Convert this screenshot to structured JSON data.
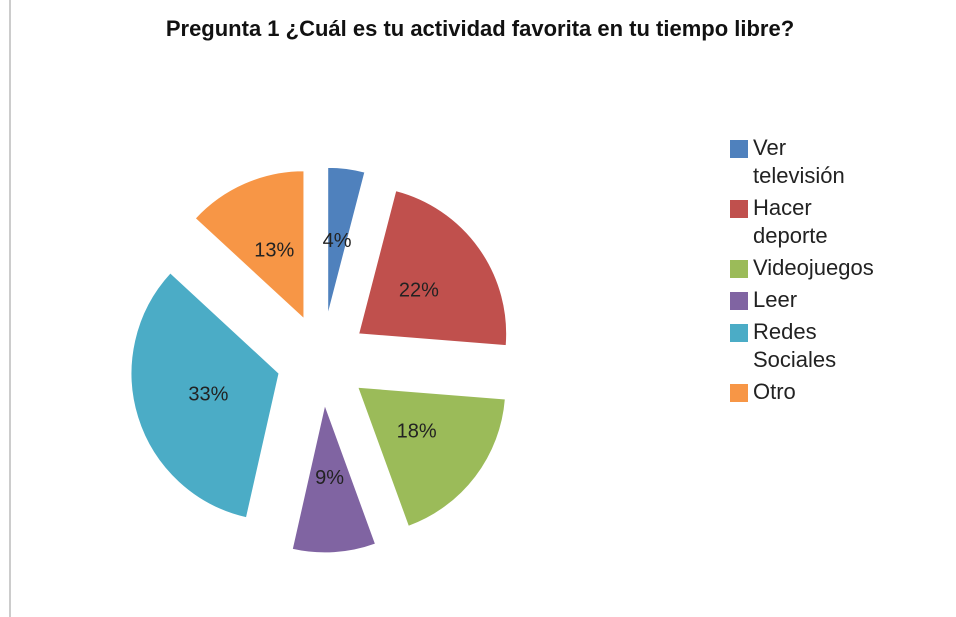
{
  "chart_data": {
    "type": "pie",
    "title": "Pregunta 1 ¿Cuál es tu actividad favorita en tu tiempo libre?",
    "categories": [
      "Ver televisión",
      "Hacer deporte",
      "Videojuegos",
      "Leer",
      "Redes Sociales",
      "Otro"
    ],
    "values": [
      4,
      22,
      18,
      9,
      33,
      13
    ],
    "value_labels": [
      "4%",
      "22%",
      "18%",
      "9%",
      "33%",
      "13%"
    ],
    "colors": [
      "#4f81bd",
      "#c0504d",
      "#9bbb59",
      "#8064a2",
      "#4bacc6",
      "#f79646"
    ],
    "legend": "right"
  }
}
